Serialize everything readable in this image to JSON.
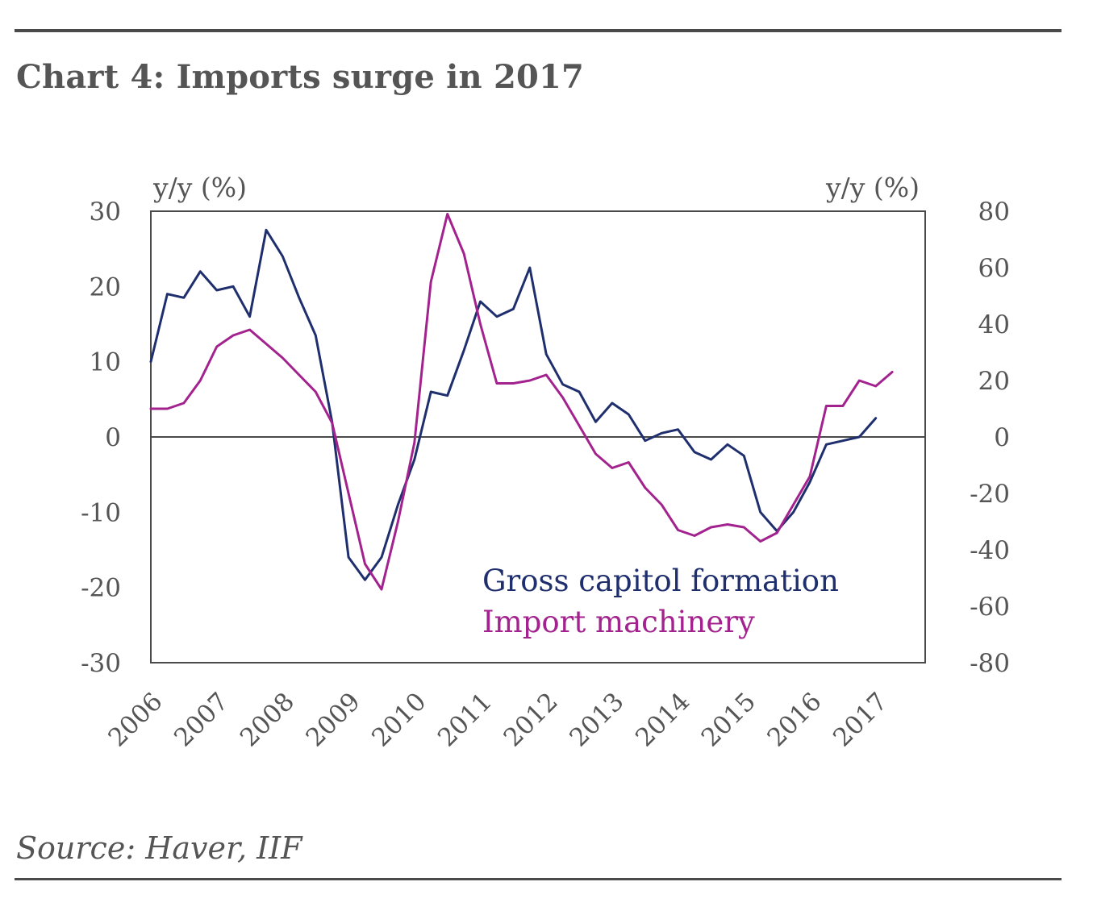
{
  "header": {
    "title": "Chart 4: Imports surge in 2017"
  },
  "footer": {
    "source": "Source: Haver, IIF"
  },
  "chart_data": {
    "type": "line",
    "title": "Chart 4: Imports surge in 2017",
    "left_axis": {
      "label": "y/y (%)",
      "ylim": [
        -30,
        30
      ],
      "ticks": [
        30,
        20,
        10,
        0,
        -10,
        -20,
        -30
      ],
      "tick_labels": [
        "30",
        "20",
        "10",
        "0",
        "-10",
        "-20",
        "-30"
      ]
    },
    "right_axis": {
      "label": "y/y (%)",
      "ylim": [
        -80,
        80
      ],
      "ticks": [
        80,
        60,
        40,
        20,
        0,
        -20,
        -40,
        -60,
        -80
      ],
      "tick_labels": [
        "80",
        "60",
        "40",
        "20",
        "0",
        "-20",
        "-40",
        "-60",
        "-80"
      ]
    },
    "x_axis": {
      "xlim": [
        2006,
        2017.75
      ],
      "ticks": [
        2006,
        2007,
        2008,
        2009,
        2010,
        2011,
        2012,
        2013,
        2014,
        2015,
        2016,
        2017
      ],
      "tick_labels": [
        "2006",
        "2007",
        "2008",
        "2009",
        "2010",
        "2011",
        "2012",
        "2013",
        "2014",
        "2015",
        "2016",
        "2017"
      ]
    },
    "grid": false,
    "zero_line": true,
    "legend_position": "bottom-right inside plot",
    "series": [
      {
        "name": "Gross capitol formation",
        "axis": "left",
        "color": "#1f2f6e",
        "x": [
          2006,
          2006.25,
          2006.5,
          2006.75,
          2007,
          2007.25,
          2007.5,
          2007.75,
          2008,
          2008.25,
          2008.5,
          2008.75,
          2009,
          2009.25,
          2009.5,
          2009.75,
          2010,
          2010.25,
          2010.5,
          2010.75,
          2011,
          2011.25,
          2011.5,
          2011.75,
          2012,
          2012.25,
          2012.5,
          2012.75,
          2013,
          2013.25,
          2013.5,
          2013.75,
          2014,
          2014.25,
          2014.5,
          2014.75,
          2015,
          2015.25,
          2015.5,
          2015.75,
          2016,
          2016.25,
          2016.5,
          2016.75,
          2017
        ],
        "y": [
          10,
          19,
          18.5,
          22,
          19.5,
          20,
          16,
          27.5,
          24,
          18.5,
          13.5,
          2,
          -16,
          -19,
          -16,
          -9,
          -3,
          6,
          5.5,
          11.5,
          18,
          16,
          17,
          22.5,
          11,
          7,
          6,
          2,
          4.5,
          3,
          -0.5,
          0.5,
          1,
          -2,
          -3,
          -1,
          -2.5,
          -10,
          -12.5,
          -10,
          -6,
          -1,
          -0.5,
          0,
          2.5
        ]
      },
      {
        "name": "Import machinery",
        "axis": "right",
        "color": "#a3238e",
        "x": [
          2006,
          2006.25,
          2006.5,
          2006.75,
          2007,
          2007.25,
          2007.5,
          2007.75,
          2008,
          2008.25,
          2008.5,
          2008.75,
          2009,
          2009.25,
          2009.5,
          2009.75,
          2010,
          2010.25,
          2010.5,
          2010.75,
          2011,
          2011.25,
          2011.5,
          2011.75,
          2012,
          2012.25,
          2012.5,
          2012.75,
          2013,
          2013.25,
          2013.5,
          2013.75,
          2014,
          2014.25,
          2014.5,
          2014.75,
          2015,
          2015.25,
          2015.5,
          2015.75,
          2016,
          2016.25,
          2016.5,
          2016.75,
          2017,
          2017.25
        ],
        "y": [
          10,
          10,
          12,
          20,
          32,
          36,
          38,
          33,
          28,
          22,
          16,
          5,
          -20,
          -45,
          -54,
          -30,
          -2,
          55,
          79,
          65,
          40,
          19,
          19,
          20,
          22,
          14,
          4,
          -6,
          -11,
          -9,
          -18,
          -24,
          -33,
          -35,
          -32,
          -31,
          -32,
          -37,
          -34,
          -24,
          -14,
          11,
          11,
          20,
          18,
          23
        ]
      }
    ]
  }
}
